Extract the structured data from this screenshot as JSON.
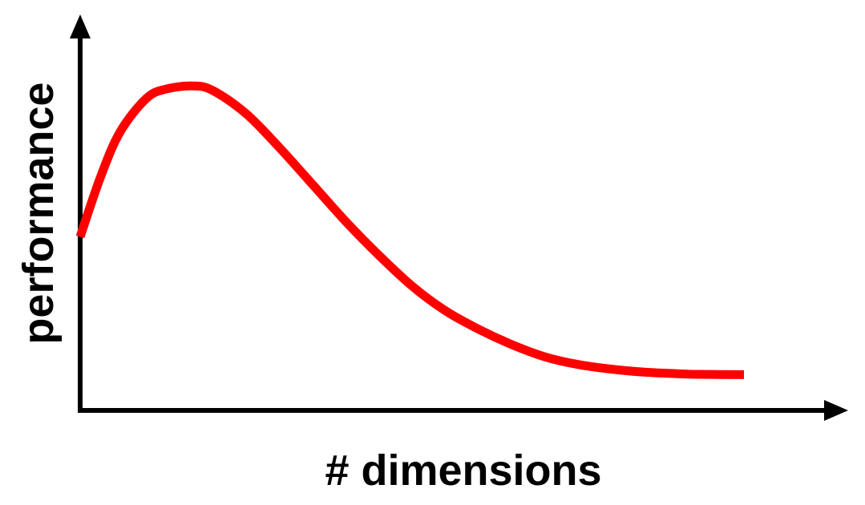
{
  "chart_data": {
    "type": "line",
    "title": "",
    "xlabel": "# dimensions",
    "ylabel": "performance",
    "xlim": [
      0,
      100
    ],
    "ylim": [
      0,
      100
    ],
    "grid": false,
    "legend": "none",
    "x_ticks": [],
    "y_ticks": [],
    "series": [
      {
        "color": "#ff0000",
        "x": [
          0,
          3,
          6,
          10,
          13,
          17,
          20,
          25,
          30,
          35,
          40,
          45,
          50,
          55,
          60,
          65,
          70,
          75,
          80,
          85,
          90,
          93,
          100
        ],
        "y": [
          46,
          65,
          80,
          91,
          94,
          95,
          93.5,
          86,
          75,
          63,
          51,
          40,
          30,
          22,
          16,
          11,
          7,
          4.5,
          3,
          2,
          1.5,
          1.3,
          1.2
        ]
      }
    ]
  },
  "colors": {
    "curve": "#ff0000",
    "axis": "#000000",
    "background": "#ffffff"
  }
}
